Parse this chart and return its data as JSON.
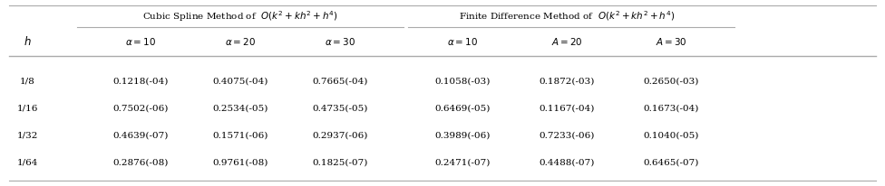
{
  "col_header_left": "Cubic Spline Method of  $O\\left(k^2+kh^2+h^4\\right)$",
  "col_header_right": "Finite Difference Method of  $O\\left(k^2+kh^2+h^4\\right)$",
  "col_h": "$h$",
  "subheaders": [
    "$\\alpha=10$",
    "$\\alpha=20$",
    "$\\alpha=30$",
    "$\\alpha=10$",
    "$A=20$",
    "$A=30$"
  ],
  "row_labels": [
    "1/8",
    "1/16",
    "1/32",
    "1/64"
  ],
  "data": [
    [
      "0.1218(-04)",
      "0.4075(-04)",
      "0.7665(-04)",
      "0.1058(-03)",
      "0.1872(-03)",
      "0.2650(-03)"
    ],
    [
      "0.7502(-06)",
      "0.2534(-05)",
      "0.4735(-05)",
      "0.6469(-05)",
      "0.1167(-04)",
      "0.1673(-04)"
    ],
    [
      "0.4639(-07)",
      "0.1571(-06)",
      "0.2937(-06)",
      "0.3989(-06)",
      "0.7233(-06)",
      "0.1040(-05)"
    ],
    [
      "0.2876(-08)",
      "0.9761(-08)",
      "0.1825(-07)",
      "0.2471(-07)",
      "0.4488(-07)",
      "0.6465(-07)"
    ]
  ],
  "bg_color": "#ffffff",
  "text_color": "#000000",
  "line_color": "#aaaaaa",
  "fontsize": 7.5
}
